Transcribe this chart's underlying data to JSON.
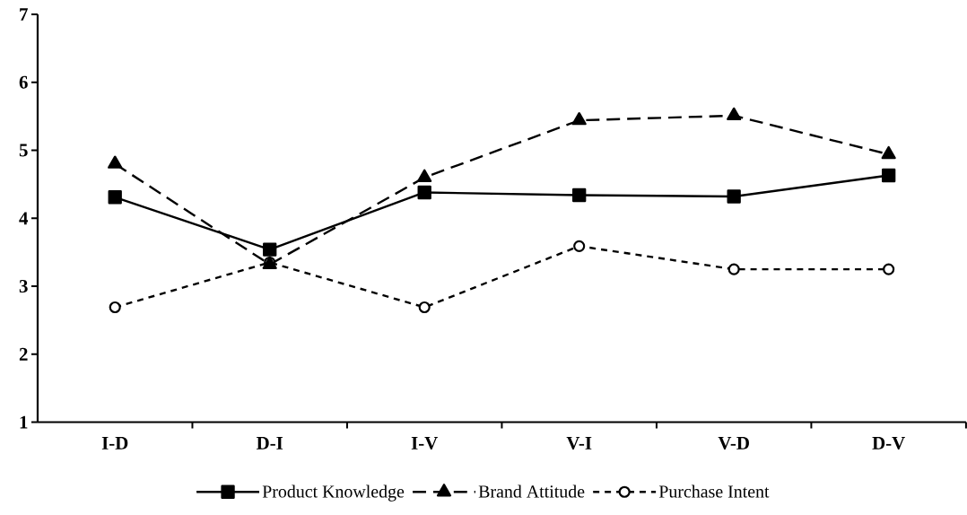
{
  "chart_data": {
    "type": "line",
    "categories": [
      "I-D",
      "D-I",
      "I-V",
      "V-I",
      "V-D",
      "D-V"
    ],
    "series": [
      {
        "name": "Product Knowledge",
        "color": "#000000",
        "marker": "square",
        "line_style": "solid",
        "values": [
          4.31,
          3.54,
          4.38,
          4.34,
          4.32,
          4.63
        ]
      },
      {
        "name": "Brand Attitude",
        "color": "#000000",
        "marker": "triangle",
        "line_style": "dashed",
        "values": [
          4.8,
          3.32,
          4.6,
          5.44,
          5.51,
          4.94
        ]
      },
      {
        "name": "Purchase Intent",
        "color": "#000000",
        "marker": "circle",
        "line_style": "dotted",
        "values": [
          2.69,
          3.35,
          2.69,
          3.59,
          3.25,
          3.25
        ]
      }
    ],
    "ylim": [
      1,
      7
    ],
    "yticks": [
      1,
      2,
      3,
      4,
      5,
      6,
      7
    ],
    "legend": "bottom",
    "grid": false
  }
}
